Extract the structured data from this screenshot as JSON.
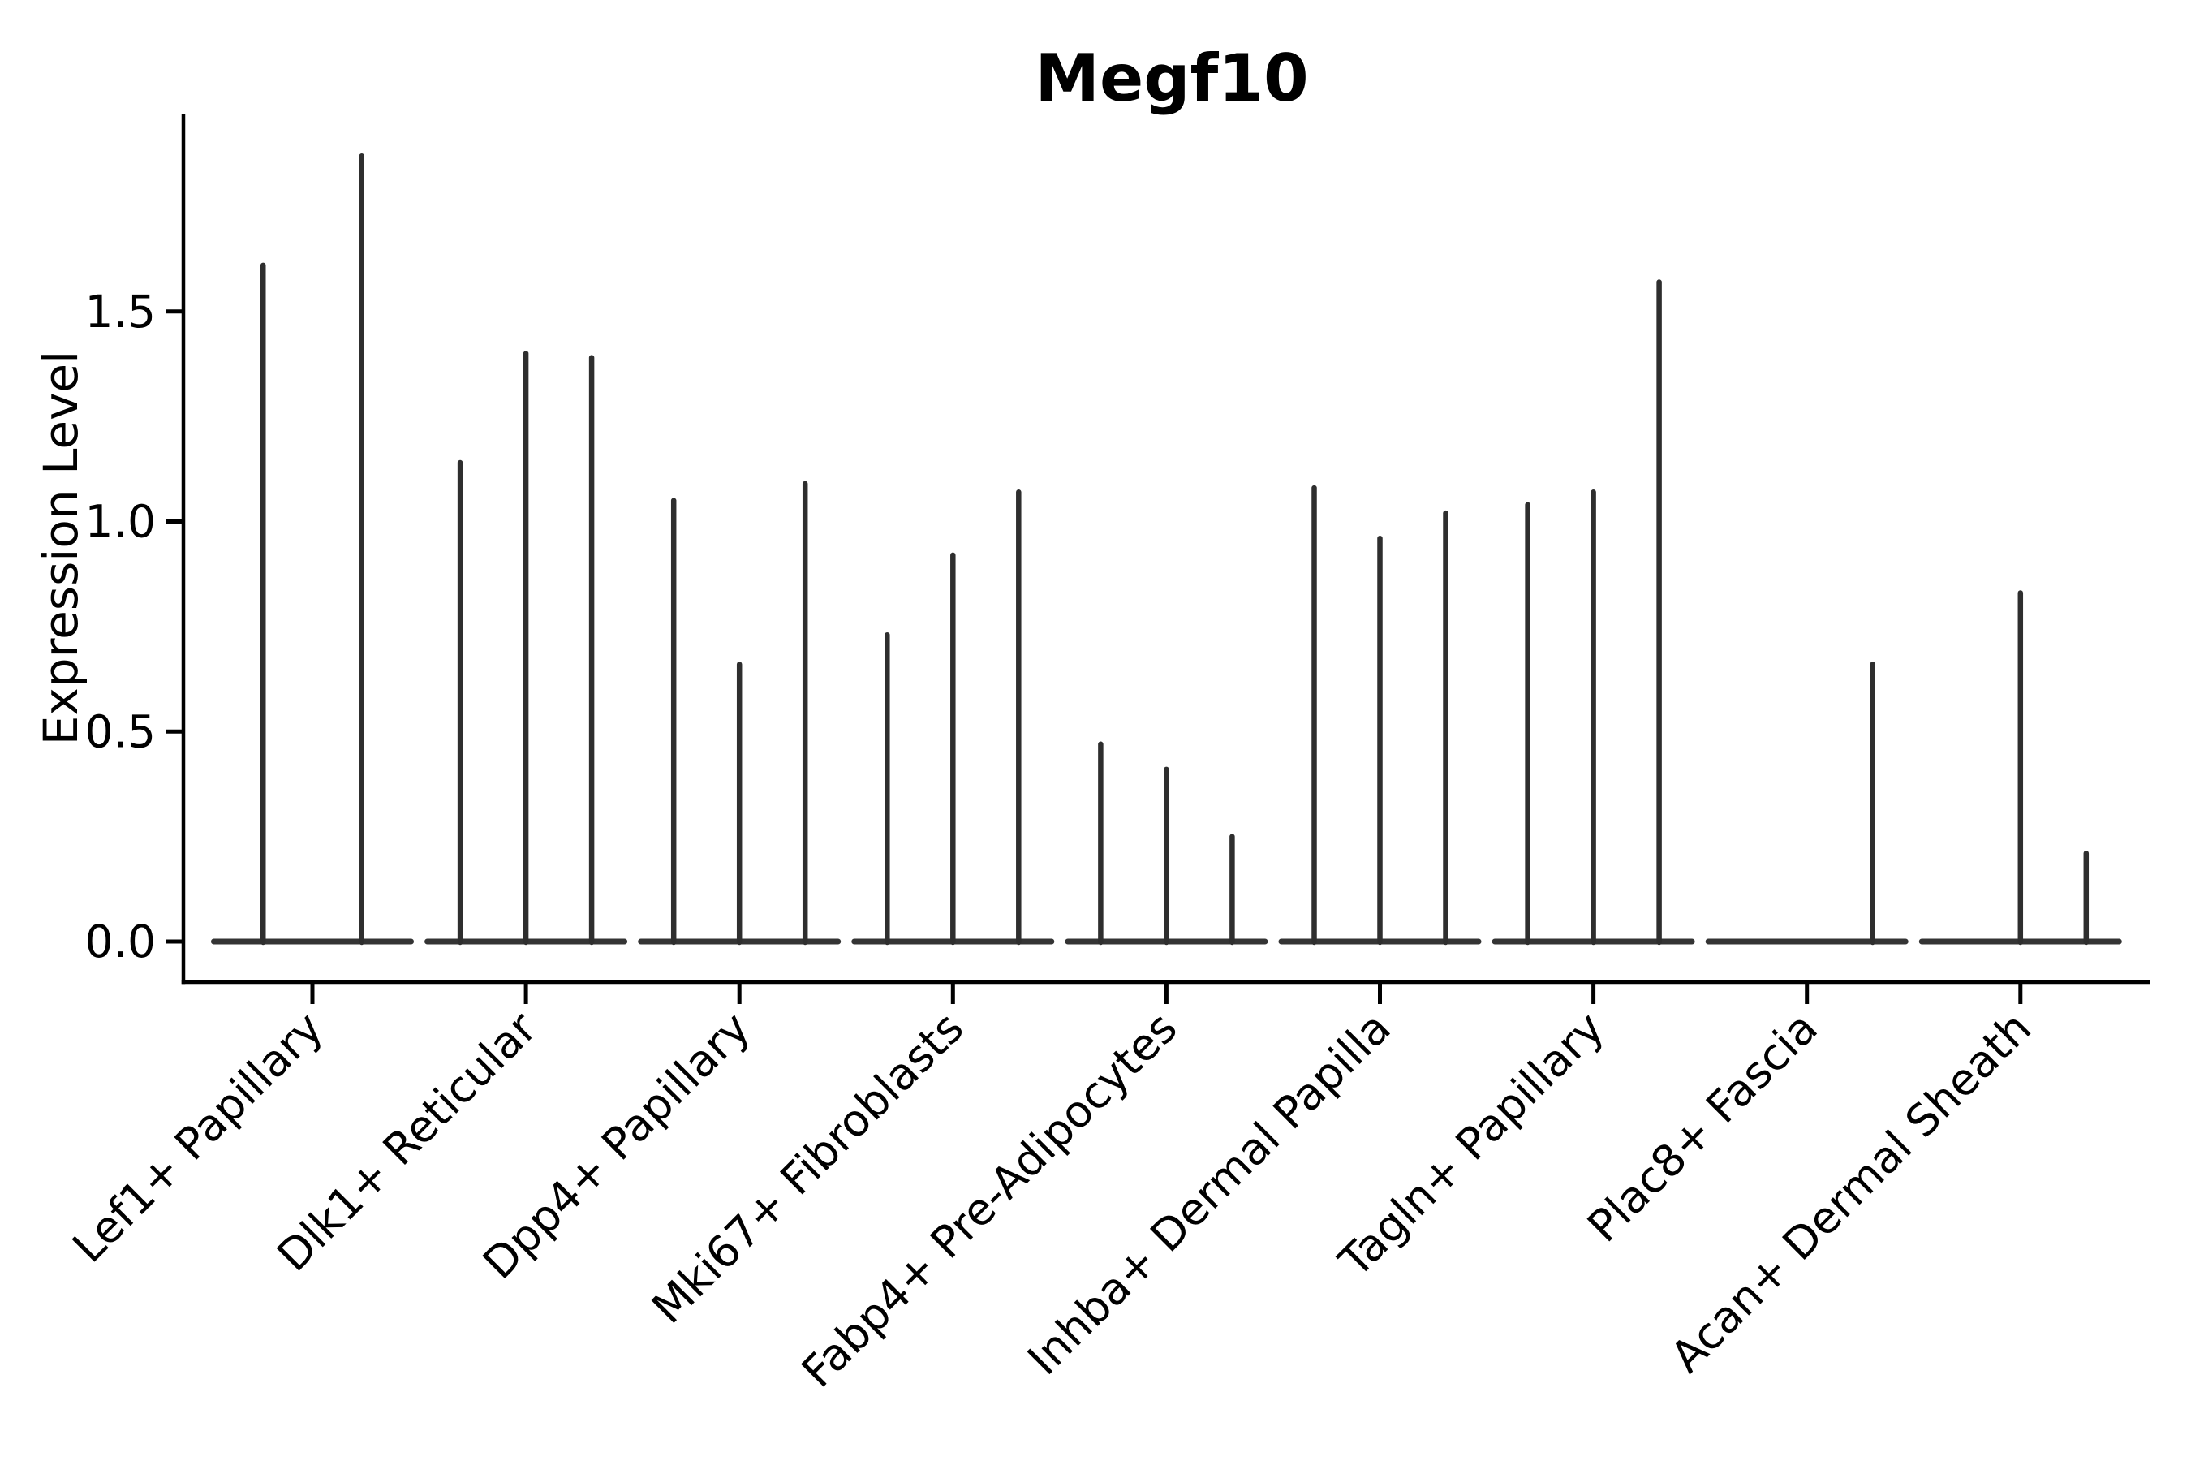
{
  "chart_data": {
    "type": "violin",
    "title": "Megf10",
    "ylabel": "Expression Level",
    "xlabel": "",
    "legend": "none",
    "grid": false,
    "style": "thin-spike violins with wide flat bases at zero (single-cell expression violin plot), black outlines, no fill, top and right spines removed",
    "yticks": [
      0.0,
      0.5,
      1.0,
      1.5
    ],
    "ytick_labels": [
      "0.0",
      "0.5",
      "1.0",
      "1.5"
    ],
    "ylim": [
      -0.1,
      1.97
    ],
    "categories": [
      "Lef1+ Papillary",
      "Dlk1+ Reticular",
      "Dpp4+ Papillary",
      "Mki67+ Fibroblasts",
      "Fabp4+ Pre-Adipocytes",
      "Inhba+ Dermal Papilla",
      "Tagln+ Papillary",
      "Plac8+ Fascia",
      "Acan+ Dermal Sheath"
    ],
    "groups": [
      {
        "label": "Lef1+ Papillary",
        "violin_peak_values": [
          1.61,
          1.87
        ]
      },
      {
        "label": "Dlk1+ Reticular",
        "violin_peak_values": [
          1.14,
          1.4,
          1.39
        ]
      },
      {
        "label": "Dpp4+ Papillary",
        "violin_peak_values": [
          1.05,
          0.66,
          1.09
        ]
      },
      {
        "label": "Mki67+ Fibroblasts",
        "violin_peak_values": [
          0.73,
          0.92,
          1.07
        ]
      },
      {
        "label": "Fabp4+ Pre-Adipocytes",
        "violin_peak_values": [
          0.47,
          0.41,
          0.25
        ]
      },
      {
        "label": "Inhba+ Dermal Papilla",
        "violin_peak_values": [
          1.08,
          0.96,
          1.02
        ]
      },
      {
        "label": "Tagln+ Papillary",
        "violin_peak_values": [
          1.04,
          1.07,
          1.57
        ]
      },
      {
        "label": "Plac8+ Fascia",
        "violin_peak_values": [
          0.0,
          0.0,
          0.66
        ]
      },
      {
        "label": "Acan+ Dermal Sheath",
        "violin_peak_values": [
          0.0,
          0.83,
          0.21
        ]
      }
    ],
    "colors": {
      "violin_line": "#2e2e2e",
      "base_line": "#343434",
      "spine": "#000000",
      "background": "#ffffff"
    }
  }
}
